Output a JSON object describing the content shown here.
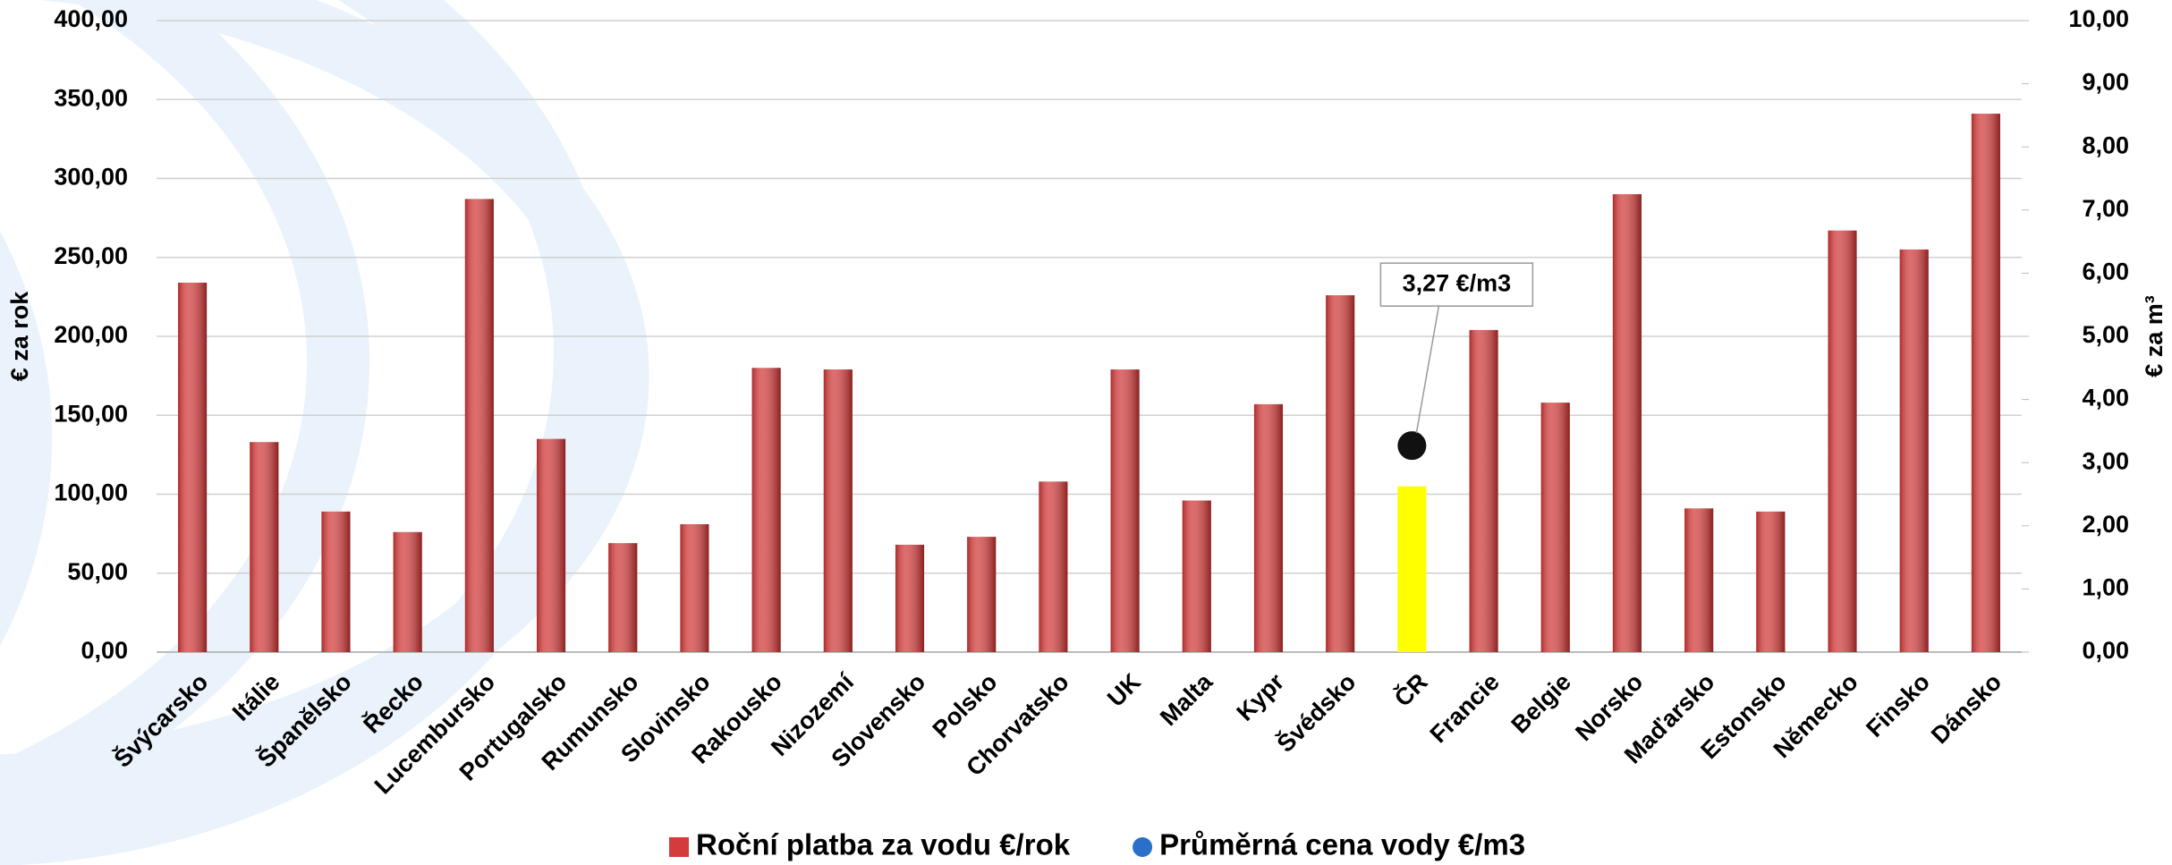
{
  "chart_data": {
    "type": "bar",
    "y_label": "€ za rok",
    "y2_label": "€ za m³",
    "categories": [
      "Švýcarsko",
      "Itálie",
      "Španělsko",
      "Řecko",
      "Lucembursko",
      "Portugalsko",
      "Rumunsko",
      "Slovinsko",
      "Rakousko",
      "Nizozemí",
      "Slovensko",
      "Polsko",
      "Chorvatsko",
      "UK",
      "Malta",
      "Kypr",
      "Švédsko",
      "ČR",
      "Francie",
      "Belgie",
      "Norsko",
      "Maďarsko",
      "Estonsko",
      "Německo",
      "Finsko",
      "Dánsko"
    ],
    "series": [
      {
        "name": "Roční platba za vodu €/rok",
        "color": "#d43c3c",
        "colors": [
          "#d43c3c",
          "#d43c3c",
          "#d43c3c",
          "#d43c3c",
          "#d43c3c",
          "#d43c3c",
          "#d43c3c",
          "#d43c3c",
          "#d43c3c",
          "#d43c3c",
          "#d43c3c",
          "#d43c3c",
          "#d43c3c",
          "#d43c3c",
          "#d43c3c",
          "#d43c3c",
          "#d43c3c",
          "#ffff00",
          "#d43c3c",
          "#d43c3c",
          "#d43c3c",
          "#d43c3c",
          "#d43c3c",
          "#d43c3c",
          "#d43c3c",
          "#d43c3c"
        ],
        "values": [
          234,
          133,
          89,
          76,
          287,
          135,
          69,
          81,
          180,
          179,
          68,
          73,
          108,
          179,
          96,
          157,
          226,
          105,
          204,
          158,
          290,
          91,
          89,
          267,
          255,
          341
        ]
      },
      {
        "name": "Průměrná cena vody €/m3",
        "color": "#2a6fc9",
        "axis": "y2",
        "values": [
          null,
          null,
          null,
          null,
          null,
          null,
          null,
          null,
          null,
          null,
          null,
          null,
          null,
          null,
          null,
          null,
          null,
          3.27,
          null,
          null,
          null,
          null,
          null,
          null,
          null,
          null
        ],
        "value_labels": [
          null,
          null,
          null,
          null,
          null,
          null,
          null,
          null,
          null,
          null,
          null,
          null,
          null,
          null,
          null,
          null,
          null,
          "3,27  €/m3",
          null,
          null,
          null,
          null,
          null,
          null,
          null,
          null
        ]
      }
    ],
    "ylim": [
      0,
      400
    ],
    "yticks": [
      {
        "value": 0,
        "label": "0,00"
      },
      {
        "value": 50,
        "label": "50,00"
      },
      {
        "value": 100,
        "label": "100,00"
      },
      {
        "value": 150,
        "label": "150,00"
      },
      {
        "value": 200,
        "label": "200,00"
      },
      {
        "value": 250,
        "label": "250,00"
      },
      {
        "value": 300,
        "label": "300,00"
      },
      {
        "value": 350,
        "label": "350,00"
      },
      {
        "value": 400,
        "label": "400,00"
      }
    ],
    "y2lim": [
      0,
      10
    ],
    "y2ticks": [
      {
        "value": 0,
        "label": "0,00"
      },
      {
        "value": 1,
        "label": "1,00"
      },
      {
        "value": 2,
        "label": "2,00"
      },
      {
        "value": 3,
        "label": "3,00"
      },
      {
        "value": 4,
        "label": "4,00"
      },
      {
        "value": 5,
        "label": "5,00"
      },
      {
        "value": 6,
        "label": "6,00"
      },
      {
        "value": 7,
        "label": "7,00"
      },
      {
        "value": 8,
        "label": "8,00"
      },
      {
        "value": 9,
        "label": "9,00"
      },
      {
        "value": 10,
        "label": "10,00"
      }
    ],
    "grid": true,
    "legend": "bottom"
  }
}
